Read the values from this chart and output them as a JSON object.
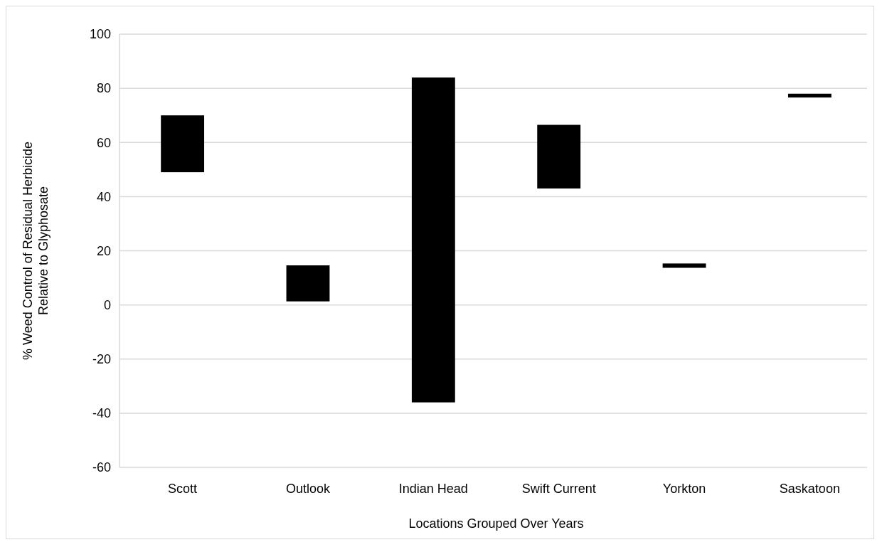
{
  "chart_data": {
    "type": "bar",
    "xlabel": "Locations Grouped Over Years",
    "ylabel": "% Weed Control of Residual Herbicide\nRelative to Glyphosate",
    "categories": [
      "Scott",
      "Outlook",
      "Indian Head",
      "Swift Current",
      "Yorkton",
      "Saskatoon"
    ],
    "base": [
      49,
      1.3,
      -36,
      43,
      13.7,
      76.6
    ],
    "values": [
      21,
      13.3,
      120,
      23.5,
      1.6,
      1.4
    ],
    "color": "#000000",
    "ylim": [
      -60,
      100
    ],
    "yticks": [
      -60,
      -40,
      -20,
      0,
      20,
      40,
      60,
      80,
      100
    ],
    "grid": "y"
  }
}
